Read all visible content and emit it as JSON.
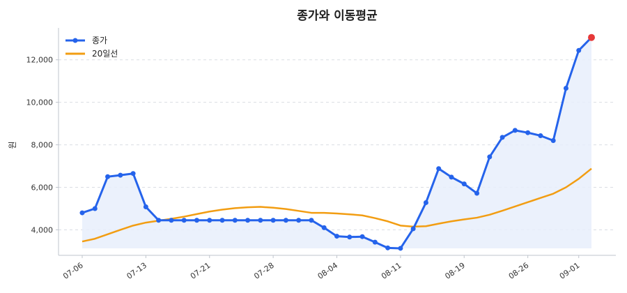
{
  "chart_data": {
    "type": "line",
    "title": "종가와 이동평균",
    "xlabel": "",
    "ylabel": "원",
    "ylim": [
      2800,
      13500
    ],
    "yticks": [
      4000,
      6000,
      8000,
      10000,
      12000
    ],
    "ytick_labels": [
      "4,000",
      "6,000",
      "8,000",
      "10,000",
      "12,000"
    ],
    "xtick_labels": [
      "07-06",
      "07-13",
      "07-21",
      "07-28",
      "08-04",
      "08-11",
      "08-19",
      "08-26",
      "09-01"
    ],
    "xtick_index": [
      0,
      5,
      10,
      15,
      20,
      25,
      30,
      35,
      39
    ],
    "grid": "horizontal dashed",
    "legend_position": "top-left",
    "colors": {
      "close": "#2563eb",
      "ma20": "#f29d12",
      "last_point": "#e63939",
      "fill": "#e8effc"
    },
    "series": [
      {
        "name": "종가",
        "values": [
          4800,
          5000,
          6500,
          6570,
          6650,
          5080,
          4450,
          4450,
          4450,
          4450,
          4450,
          4450,
          4450,
          4450,
          4450,
          4450,
          4450,
          4450,
          4450,
          4100,
          3700,
          3660,
          3680,
          3420,
          3150,
          3130,
          4050,
          5280,
          6880,
          6480,
          6160,
          5720,
          7430,
          8350,
          8680,
          8570,
          8430,
          8200,
          10660,
          12440,
          13050
        ]
      },
      {
        "name": "20일선",
        "values": [
          3450,
          3580,
          3790,
          4000,
          4200,
          4340,
          4430,
          4520,
          4620,
          4740,
          4860,
          4950,
          5020,
          5060,
          5080,
          5040,
          4980,
          4890,
          4800,
          4800,
          4770,
          4730,
          4680,
          4550,
          4400,
          4200,
          4150,
          4170,
          4290,
          4400,
          4490,
          4570,
          4710,
          4900,
          5100,
          5300,
          5500,
          5700,
          6000,
          6400,
          6880
        ]
      }
    ]
  }
}
